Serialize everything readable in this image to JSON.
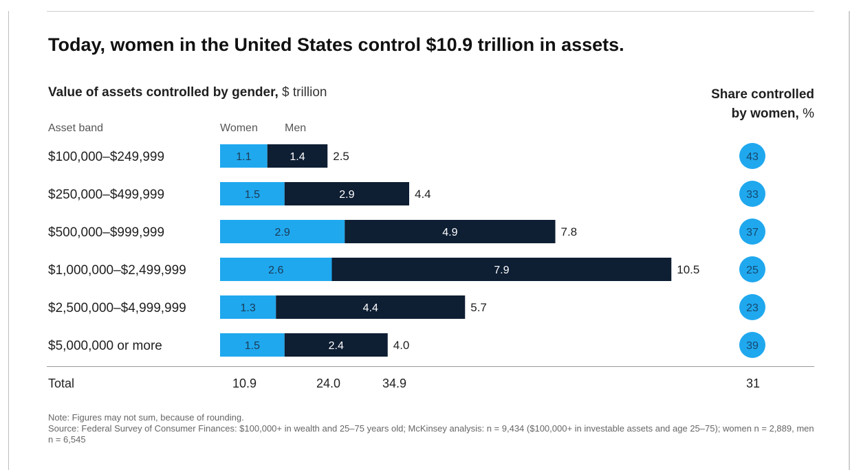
{
  "title": "Today, women in the United States control $10.9 trillion in assets.",
  "chart_data": {
    "type": "bar",
    "stacked": true,
    "orientation": "horizontal",
    "title": "Value of assets controlled by gender,",
    "title_unit": "$ trillion",
    "category_label": "Asset band",
    "categories": [
      "$100,000–$249,999",
      "$250,000–$499,999",
      "$500,000–$999,999",
      "$1,000,000–$2,499,999",
      "$2,500,000–$4,999,999",
      "$5,000,000 or more"
    ],
    "series": [
      {
        "name": "Women",
        "color": "#1fa8ee",
        "values": [
          1.1,
          1.5,
          2.9,
          2.6,
          1.3,
          1.5
        ]
      },
      {
        "name": "Men",
        "color": "#0e1e33",
        "values": [
          1.4,
          2.9,
          4.9,
          7.9,
          4.4,
          2.4
        ]
      }
    ],
    "row_totals": [
      "2.5",
      "4.4",
      "7.8",
      "10.5",
      "5.7",
      "4.0"
    ],
    "share_title": "Share controlled",
    "share_title_2": "by women,",
    "share_unit": "%",
    "share_values": [
      43,
      33,
      37,
      25,
      23,
      39
    ],
    "total_label": "Total",
    "total_women": "10.9",
    "total_men": "24.0",
    "total_all": "34.9",
    "total_share": "31"
  },
  "notes": {
    "note": "Note: Figures may not sum, because of rounding.",
    "source": "Source: Federal Survey of Consumer Finances: $100,000+ in wealth and 25–75 years old; McKinsey analysis: n = 9,434 ($100,000+ in investable assets and age 25–75); women n = 2,889, men n = 6,545"
  },
  "colors": {
    "women": "#1fa8ee",
    "men": "#0e1e33",
    "bubble": "#1fa8ee"
  }
}
